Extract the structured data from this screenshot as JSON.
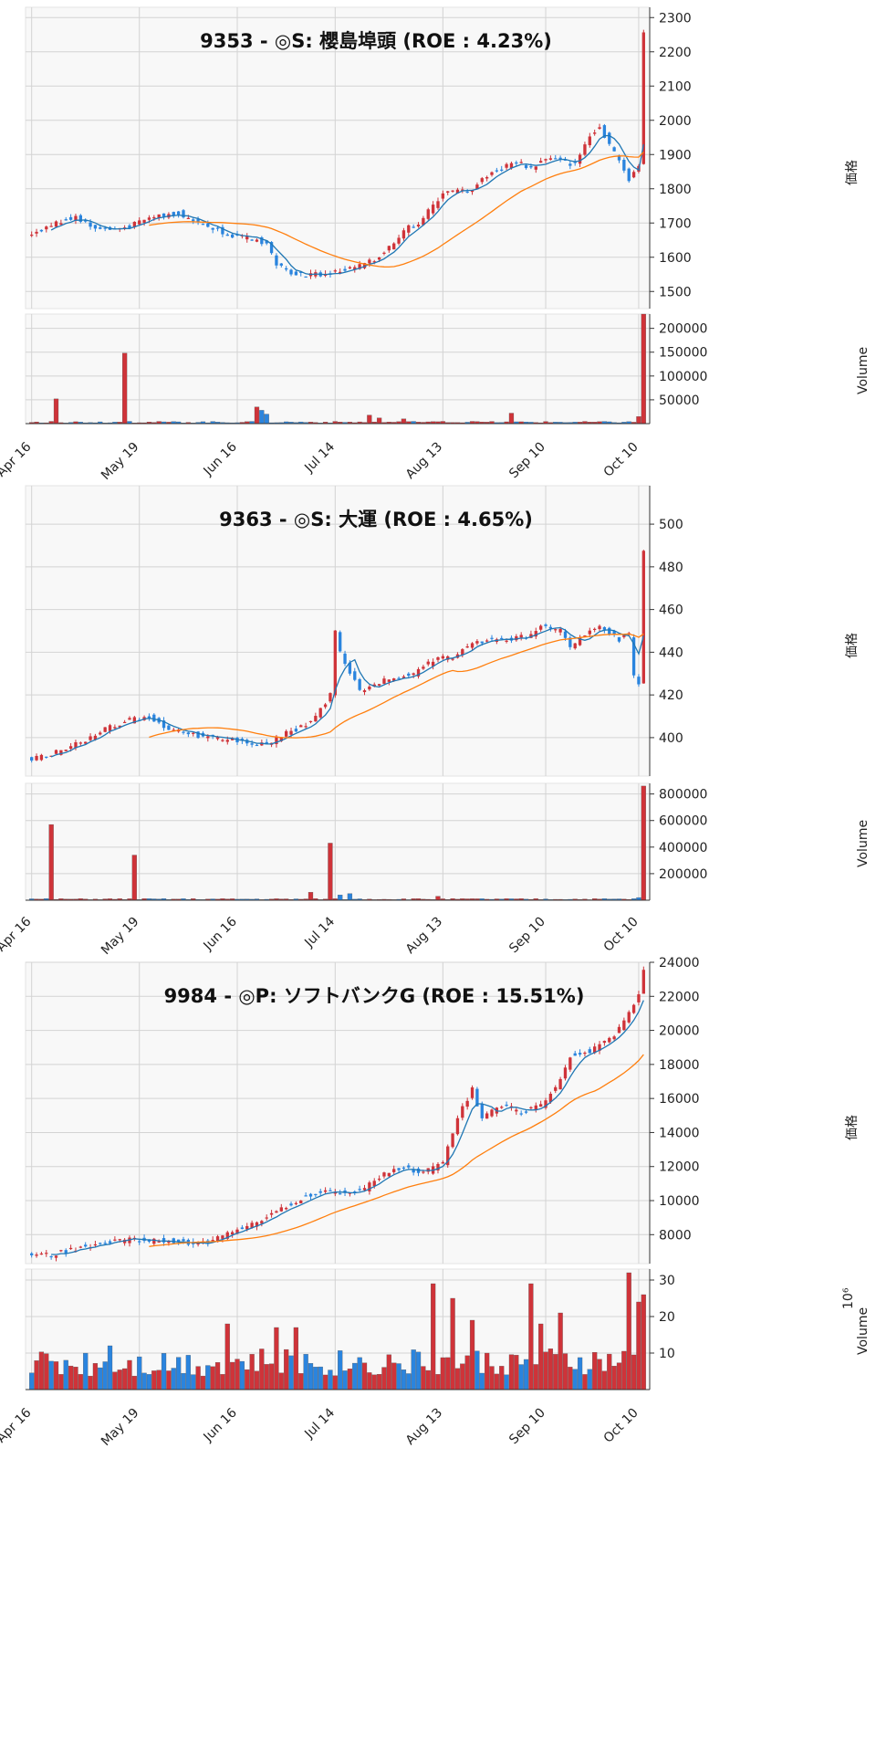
{
  "chart_data": [
    {
      "type": "candlestick",
      "title": "9353 - ◎S: 櫻島埠頭 (ROE : 4.23%)",
      "price_ylabel": "価格",
      "volume_ylabel": "Volume",
      "volume_multiplier_label": "",
      "x_ticks": [
        "Apr 16",
        "May 19",
        "Jun 16",
        "Jul 14",
        "Aug 13",
        "Sep 10",
        "Oct 10"
      ],
      "price_yticks": [
        1500,
        1600,
        1700,
        1800,
        1900,
        2000,
        2100,
        2200,
        2300
      ],
      "price_ylim": [
        1450,
        2330
      ],
      "volume_yticks": [
        50000,
        100000,
        150000,
        200000
      ],
      "volume_yticklabels": [
        "50000",
        "100000",
        "150000",
        "200000"
      ],
      "volume_ylim": [
        0,
        230000
      ],
      "series": [
        {
          "name": "",
          "role": "price-candles"
        },
        {
          "name": "",
          "role": "moving-average-short",
          "color": "#1f77b4"
        },
        {
          "name": "",
          "role": "moving-average-long",
          "color": "#ff7f0e"
        },
        {
          "name": "",
          "role": "volume-bars"
        }
      ],
      "colors": {
        "up": "#cf3339",
        "down": "#2a84de"
      },
      "num_periods": 126,
      "anchors": [
        [
          0,
          1670
        ],
        [
          5,
          1700
        ],
        [
          9,
          1720
        ],
        [
          12,
          1690
        ],
        [
          16,
          1680
        ],
        [
          20,
          1690
        ],
        [
          25,
          1720
        ],
        [
          30,
          1730
        ],
        [
          34,
          1700
        ],
        [
          38,
          1680
        ],
        [
          42,
          1660
        ],
        [
          46,
          1650
        ],
        [
          48,
          1640
        ],
        [
          50,
          1580
        ],
        [
          52,
          1560
        ],
        [
          56,
          1550
        ],
        [
          60,
          1550
        ],
        [
          63,
          1560
        ],
        [
          66,
          1570
        ],
        [
          70,
          1590
        ],
        [
          73,
          1630
        ],
        [
          76,
          1680
        ],
        [
          79,
          1700
        ],
        [
          82,
          1750
        ],
        [
          84,
          1790
        ],
        [
          86,
          1790
        ],
        [
          90,
          1800
        ],
        [
          93,
          1840
        ],
        [
          96,
          1860
        ],
        [
          99,
          1880
        ],
        [
          102,
          1860
        ],
        [
          105,
          1890
        ],
        [
          108,
          1880
        ],
        [
          111,
          1870
        ],
        [
          114,
          1960
        ],
        [
          116,
          1980
        ],
        [
          118,
          1930
        ],
        [
          120,
          1880
        ],
        [
          122,
          1830
        ],
        [
          123,
          1850
        ],
        [
          124,
          1870
        ],
        [
          125,
          2250
        ]
      ],
      "volume_spikes": [
        [
          5,
          52000
        ],
        [
          19,
          148000
        ],
        [
          46,
          35000
        ],
        [
          47,
          28000
        ],
        [
          48,
          20000
        ],
        [
          69,
          18000
        ],
        [
          71,
          12000
        ],
        [
          76,
          10000
        ],
        [
          98,
          22000
        ],
        [
          124,
          15000
        ],
        [
          125,
          230000
        ]
      ],
      "volume_base": 3000,
      "ma_short_window": 5,
      "ma_long_window": 25
    },
    {
      "type": "candlestick",
      "title": "9363 - ◎S: 大運 (ROE : 4.65%)",
      "price_ylabel": "価格",
      "volume_ylabel": "Volume",
      "volume_multiplier_label": "",
      "x_ticks": [
        "Apr 16",
        "May 19",
        "Jun 16",
        "Jul 14",
        "Aug 13",
        "Sep 10",
        "Oct 10"
      ],
      "price_yticks": [
        400,
        420,
        440,
        460,
        480,
        500
      ],
      "price_ylim": [
        382,
        518
      ],
      "volume_yticks": [
        200000,
        400000,
        600000,
        800000
      ],
      "volume_yticklabels": [
        "200000",
        "400000",
        "600000",
        "800000"
      ],
      "volume_ylim": [
        0,
        880000
      ],
      "series": [
        {
          "name": "",
          "role": "price-candles"
        },
        {
          "name": "",
          "role": "moving-average-short",
          "color": "#1f77b4"
        },
        {
          "name": "",
          "role": "moving-average-long",
          "color": "#ff7f0e"
        },
        {
          "name": "",
          "role": "volume-bars"
        }
      ],
      "colors": {
        "up": "#cf3339",
        "down": "#2a84de"
      },
      "num_periods": 126,
      "anchors": [
        [
          0,
          390
        ],
        [
          4,
          392
        ],
        [
          8,
          396
        ],
        [
          12,
          400
        ],
        [
          16,
          405
        ],
        [
          20,
          408
        ],
        [
          24,
          410
        ],
        [
          28,
          404
        ],
        [
          32,
          402
        ],
        [
          36,
          400
        ],
        [
          40,
          399
        ],
        [
          44,
          398
        ],
        [
          48,
          397
        ],
        [
          52,
          402
        ],
        [
          56,
          406
        ],
        [
          58,
          410
        ],
        [
          61,
          420
        ],
        [
          62,
          450
        ],
        [
          63,
          440
        ],
        [
          65,
          430
        ],
        [
          67,
          422
        ],
        [
          70,
          425
        ],
        [
          74,
          428
        ],
        [
          78,
          430
        ],
        [
          82,
          436
        ],
        [
          86,
          438
        ],
        [
          90,
          444
        ],
        [
          94,
          446
        ],
        [
          98,
          446
        ],
        [
          102,
          448
        ],
        [
          104,
          452
        ],
        [
          108,
          450
        ],
        [
          110,
          442
        ],
        [
          114,
          450
        ],
        [
          116,
          452
        ],
        [
          120,
          446
        ],
        [
          122,
          448
        ],
        [
          123,
          428
        ],
        [
          124,
          426
        ],
        [
          125,
          488
        ]
      ],
      "volume_spikes": [
        [
          4,
          570000
        ],
        [
          21,
          340000
        ],
        [
          57,
          60000
        ],
        [
          61,
          430000
        ],
        [
          63,
          40000
        ],
        [
          65,
          50000
        ],
        [
          83,
          30000
        ],
        [
          124,
          20000
        ],
        [
          125,
          860000
        ]
      ],
      "volume_base": 8000,
      "ma_short_window": 5,
      "ma_long_window": 25
    },
    {
      "type": "candlestick",
      "title": "9984 - ◎P: ソフトバンクG (ROE : 15.51%)",
      "price_ylabel": "価格",
      "volume_ylabel": "Volume",
      "volume_multiplier_label": "10⁶",
      "x_ticks": [
        "Apr 16",
        "May 19",
        "Jun 16",
        "Jul 14",
        "Aug 13",
        "Sep 10",
        "Oct 10"
      ],
      "price_yticks": [
        8000,
        10000,
        12000,
        14000,
        16000,
        18000,
        20000,
        22000,
        24000
      ],
      "price_ylim": [
        6300,
        24000
      ],
      "volume_yticks": [
        10,
        20,
        30
      ],
      "volume_yticklabels": [
        "10",
        "20",
        "30"
      ],
      "volume_ylim": [
        0,
        33
      ],
      "series": [
        {
          "name": "",
          "role": "price-candles"
        },
        {
          "name": "",
          "role": "moving-average-short",
          "color": "#1f77b4"
        },
        {
          "name": "",
          "role": "moving-average-long",
          "color": "#ff7f0e"
        },
        {
          "name": "",
          "role": "volume-bars"
        }
      ],
      "colors": {
        "up": "#cf3339",
        "down": "#2a84de"
      },
      "num_periods": 126,
      "anchors": [
        [
          0,
          6900
        ],
        [
          4,
          6800
        ],
        [
          8,
          7100
        ],
        [
          12,
          7400
        ],
        [
          16,
          7600
        ],
        [
          20,
          7700
        ],
        [
          24,
          7600
        ],
        [
          28,
          7700
        ],
        [
          32,
          7500
        ],
        [
          36,
          7600
        ],
        [
          40,
          8000
        ],
        [
          44,
          8500
        ],
        [
          48,
          9000
        ],
        [
          52,
          9700
        ],
        [
          56,
          10300
        ],
        [
          60,
          10600
        ],
        [
          64,
          10500
        ],
        [
          68,
          10700
        ],
        [
          72,
          11600
        ],
        [
          76,
          12000
        ],
        [
          80,
          11600
        ],
        [
          84,
          12200
        ],
        [
          86,
          14000
        ],
        [
          88,
          15500
        ],
        [
          90,
          16500
        ],
        [
          92,
          14800
        ],
        [
          96,
          15600
        ],
        [
          100,
          15200
        ],
        [
          104,
          15600
        ],
        [
          108,
          17000
        ],
        [
          110,
          18500
        ],
        [
          114,
          18800
        ],
        [
          118,
          19400
        ],
        [
          122,
          21000
        ],
        [
          124,
          22000
        ],
        [
          125,
          23500
        ]
      ],
      "volume_base": 7,
      "volume_spikes": [
        [
          16,
          12
        ],
        [
          40,
          18
        ],
        [
          50,
          17
        ],
        [
          54,
          17
        ],
        [
          82,
          29
        ],
        [
          86,
          25
        ],
        [
          90,
          19
        ],
        [
          102,
          29
        ],
        [
          104,
          18
        ],
        [
          108,
          21
        ],
        [
          122,
          32
        ],
        [
          124,
          24
        ],
        [
          125,
          26
        ]
      ],
      "ma_short_window": 5,
      "ma_long_window": 25
    }
  ]
}
